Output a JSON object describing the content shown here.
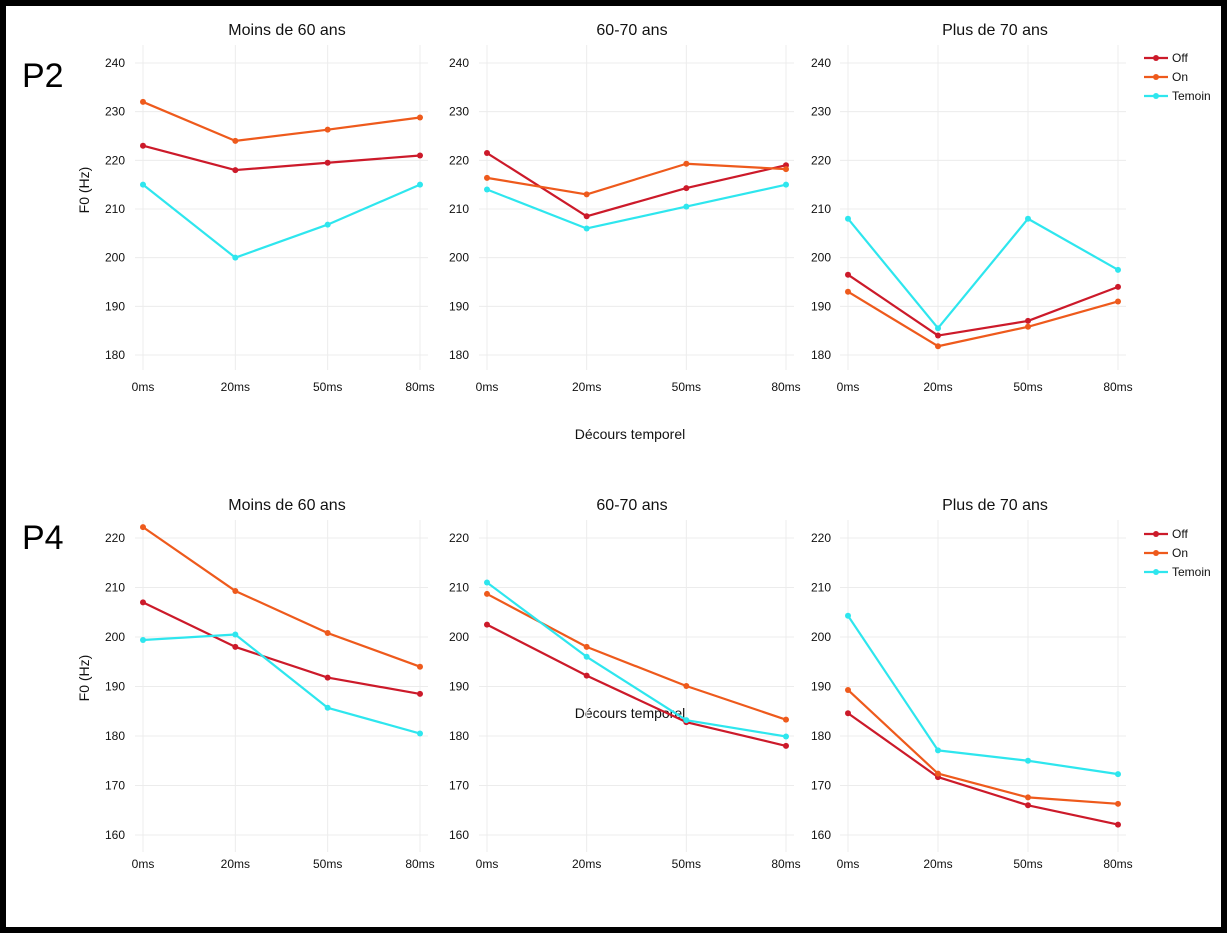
{
  "series_colors": {
    "Off": "#cc1a2a",
    "On": "#ee5a1c",
    "Temoin": "#2ee6ee"
  },
  "chart_data": [
    {
      "type": "line",
      "row_label": "P2",
      "title": "Moins de 60 ans",
      "ylabel": "F0 (Hz)",
      "xlabel": "Décours temporel",
      "categories": [
        "0ms",
        "20ms",
        "50ms",
        "80ms"
      ],
      "yticks": [
        180,
        190,
        200,
        210,
        220,
        230,
        240
      ],
      "ylim": [
        176,
        245
      ],
      "legend": "right",
      "series": [
        {
          "name": "Off",
          "values": [
            223,
            218,
            219.5,
            221
          ]
        },
        {
          "name": "On",
          "values": [
            232,
            224,
            226.3,
            228.8
          ]
        },
        {
          "name": "Temoin",
          "values": [
            215,
            200,
            206.8,
            215
          ]
        }
      ]
    },
    {
      "type": "line",
      "row_label": "P2",
      "title": "60-70 ans",
      "categories": [
        "0ms",
        "20ms",
        "50ms",
        "80ms"
      ],
      "yticks": [
        180,
        190,
        200,
        210,
        220,
        230,
        240
      ],
      "ylim": [
        176,
        245
      ],
      "series": [
        {
          "name": "Off",
          "values": [
            221.5,
            208.5,
            214.3,
            219
          ]
        },
        {
          "name": "On",
          "values": [
            216.4,
            213,
            219.3,
            218.2
          ]
        },
        {
          "name": "Temoin",
          "values": [
            214,
            206,
            210.5,
            215
          ]
        }
      ]
    },
    {
      "type": "line",
      "row_label": "P2",
      "title": "Plus de 70 ans",
      "categories": [
        "0ms",
        "20ms",
        "50ms",
        "80ms"
      ],
      "yticks": [
        180,
        190,
        200,
        210,
        220,
        230,
        240
      ],
      "ylim": [
        176,
        245
      ],
      "series": [
        {
          "name": "Off",
          "values": [
            196.5,
            184,
            187,
            194
          ]
        },
        {
          "name": "On",
          "values": [
            193,
            181.8,
            185.8,
            191
          ]
        },
        {
          "name": "Temoin",
          "values": [
            208,
            185.5,
            208,
            197.5
          ]
        }
      ]
    },
    {
      "type": "line",
      "row_label": "P4",
      "title": "Moins de 60 ans",
      "ylabel": "F0 (Hz)",
      "xlabel": "Décours temporel",
      "categories": [
        "0ms",
        "20ms",
        "50ms",
        "80ms"
      ],
      "yticks": [
        160,
        170,
        180,
        190,
        200,
        210,
        220
      ],
      "ylim": [
        156,
        224
      ],
      "legend": "right",
      "series": [
        {
          "name": "Off",
          "values": [
            207,
            198,
            191.8,
            188.5
          ]
        },
        {
          "name": "On",
          "values": [
            222.2,
            209.3,
            200.8,
            194
          ]
        },
        {
          "name": "Temoin",
          "values": [
            199.4,
            200.5,
            185.7,
            180.5
          ]
        }
      ]
    },
    {
      "type": "line",
      "row_label": "P4",
      "title": "60-70 ans",
      "categories": [
        "0ms",
        "20ms",
        "50ms",
        "80ms"
      ],
      "yticks": [
        160,
        170,
        180,
        190,
        200,
        210,
        220
      ],
      "ylim": [
        156,
        224
      ],
      "series": [
        {
          "name": "Off",
          "values": [
            202.5,
            192.2,
            182.8,
            178
          ]
        },
        {
          "name": "On",
          "values": [
            208.7,
            198,
            190.1,
            183.3
          ]
        },
        {
          "name": "Temoin",
          "values": [
            211,
            196,
            183.2,
            179.9
          ]
        }
      ]
    },
    {
      "type": "line",
      "row_label": "P4",
      "title": "Plus de 70 ans",
      "categories": [
        "0ms",
        "20ms",
        "50ms",
        "80ms"
      ],
      "yticks": [
        160,
        170,
        180,
        190,
        200,
        210,
        220
      ],
      "ylim": [
        156,
        224
      ],
      "series": [
        {
          "name": "Off",
          "values": [
            184.6,
            171.7,
            166,
            162.1
          ]
        },
        {
          "name": "On",
          "values": [
            189.3,
            172.4,
            167.6,
            166.3
          ]
        },
        {
          "name": "Temoin",
          "values": [
            204.3,
            177.1,
            175,
            172.3
          ]
        }
      ]
    }
  ]
}
